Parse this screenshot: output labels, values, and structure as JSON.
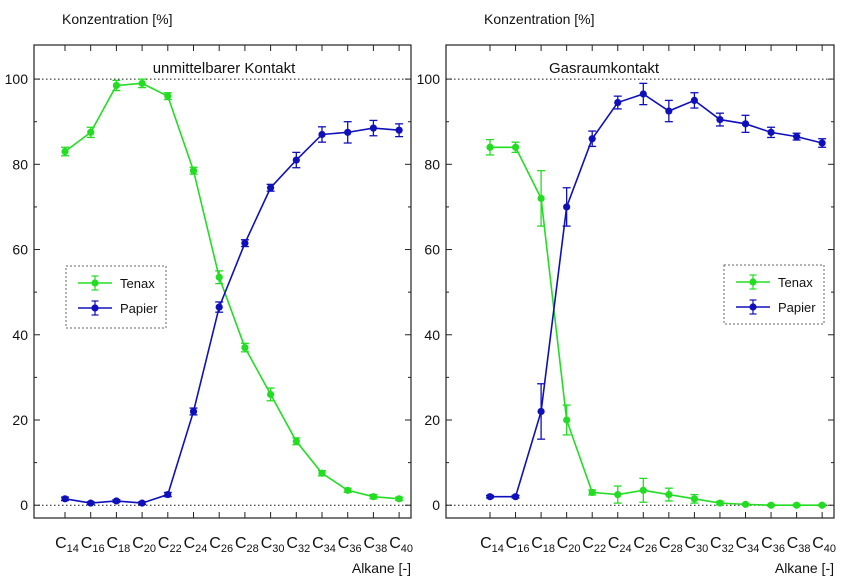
{
  "chart_data": [
    {
      "type": "line",
      "title": "unmittelbarer Kontakt",
      "ylabel": "Konzentration [%]",
      "xlabel": "Alkane [-]",
      "ylim": [
        -3,
        108
      ],
      "yticks": [
        "0",
        "20",
        "40",
        "60",
        "80",
        "100"
      ],
      "x_base": "C",
      "x_subs": [
        "14",
        "16",
        "18",
        "20",
        "22",
        "24",
        "26",
        "28",
        "30",
        "32",
        "34",
        "36",
        "38",
        "40"
      ],
      "series": [
        {
          "name": "Tenax",
          "color": "#22dd22",
          "values": [
            83,
            87.5,
            98.5,
            99,
            96,
            78.5,
            53.5,
            37,
            26,
            15,
            7.5,
            3.5,
            2,
            1.5
          ],
          "errors": [
            1,
            1.2,
            1.2,
            1,
            0.8,
            0.8,
            1.5,
            1,
            1.5,
            0.8,
            0.6,
            0.5,
            0.5,
            0.4
          ]
        },
        {
          "name": "Papier",
          "color": "#1010bb",
          "values": [
            1.5,
            0.5,
            1,
            0.5,
            2.5,
            22,
            46.5,
            61.5,
            74.5,
            81,
            87,
            87.5,
            88.5,
            88
          ],
          "errors": [
            0.4,
            0.3,
            0.3,
            0.3,
            0.5,
            0.8,
            1.2,
            0.8,
            0.8,
            1.8,
            1.8,
            2.5,
            1.8,
            1.5
          ]
        }
      ]
    },
    {
      "type": "line",
      "title": "Gasraumkontakt",
      "ylabel": "Konzentration [%]",
      "xlabel": "Alkane [-]",
      "ylim": [
        -3,
        108
      ],
      "yticks": [
        "0",
        "20",
        "40",
        "60",
        "80",
        "100"
      ],
      "x_base": "C",
      "x_subs": [
        "14",
        "16",
        "18",
        "20",
        "22",
        "24",
        "26",
        "28",
        "30",
        "32",
        "34",
        "36",
        "38",
        "40"
      ],
      "series": [
        {
          "name": "Tenax",
          "color": "#22dd22",
          "values": [
            84,
            84,
            72,
            20,
            3,
            2.5,
            3.5,
            2.5,
            1.5,
            0.5,
            0.2,
            0,
            0,
            0
          ],
          "errors": [
            1.8,
            1.2,
            6.5,
            3.5,
            0.6,
            2,
            2.8,
            1.5,
            1,
            0.4,
            0.2,
            0.2,
            0.2,
            0.2
          ]
        },
        {
          "name": "Papier",
          "color": "#1010bb",
          "values": [
            2,
            2,
            22,
            70,
            86,
            94.5,
            96.5,
            92.5,
            95,
            90.5,
            89.5,
            87.5,
            86.5,
            85
          ],
          "errors": [
            0.3,
            0.3,
            6.5,
            4.5,
            1.8,
            1.5,
            2.5,
            2.5,
            1.8,
            1.5,
            2,
            1.2,
            0.8,
            1
          ]
        }
      ]
    }
  ]
}
